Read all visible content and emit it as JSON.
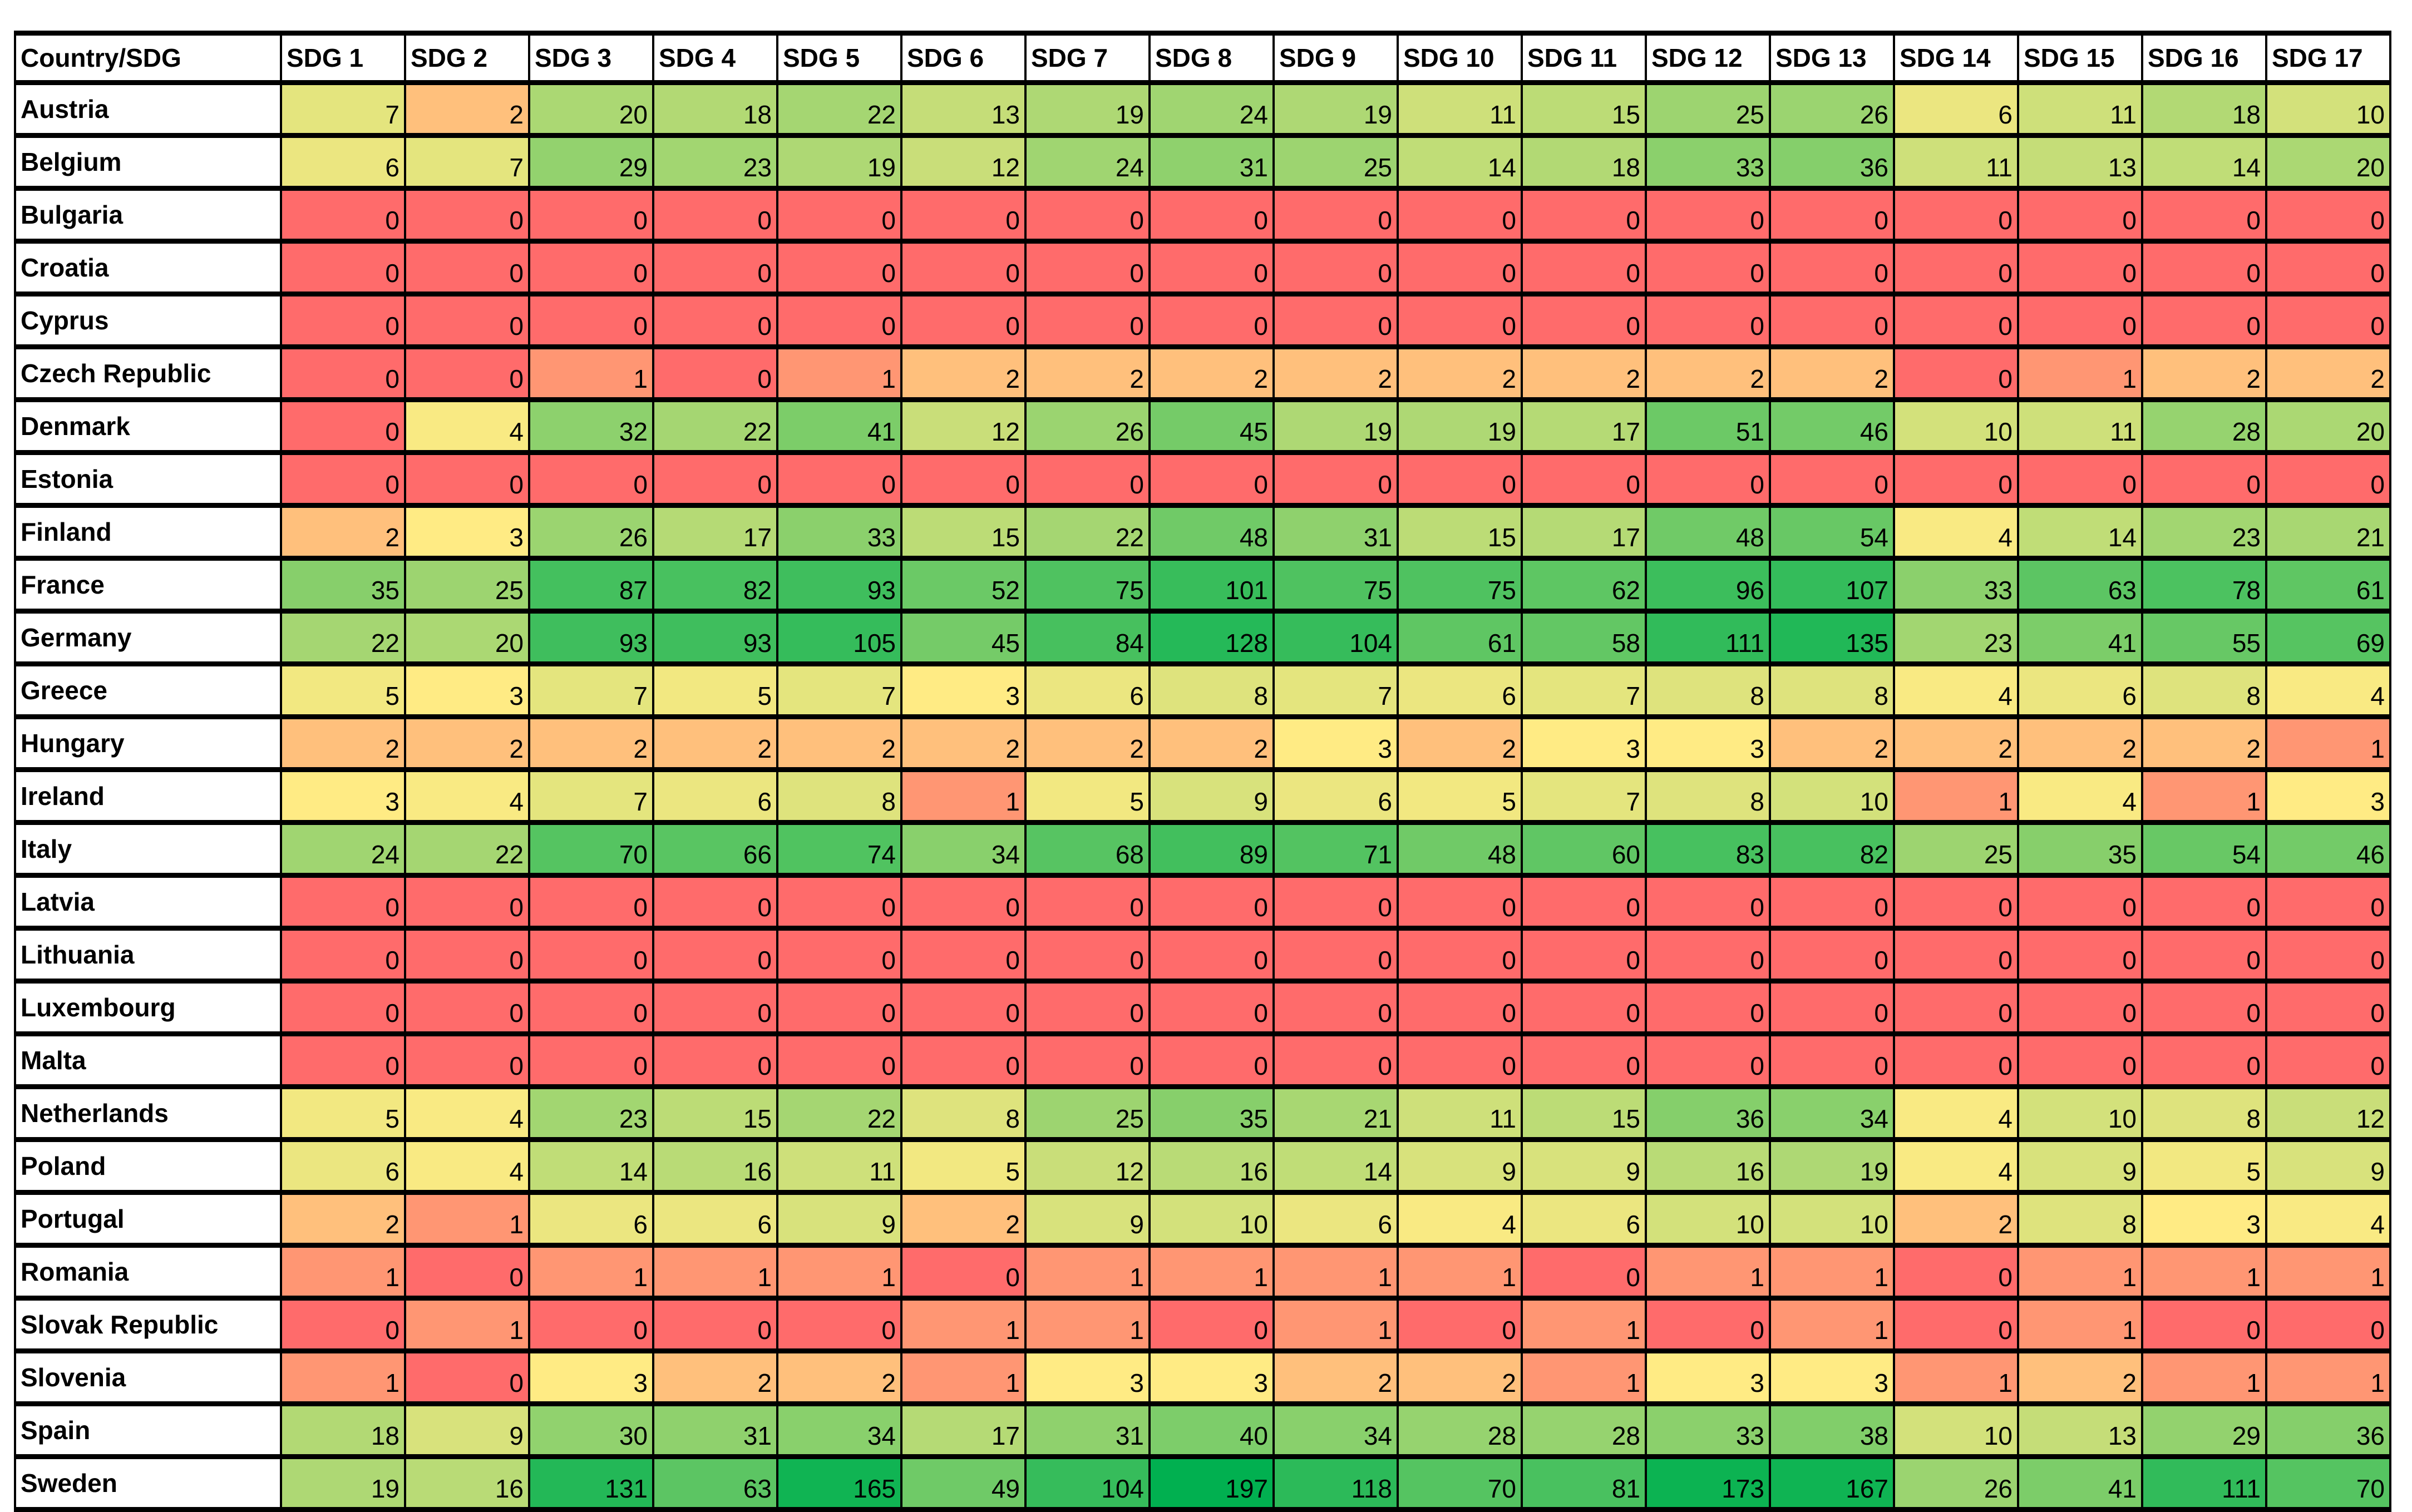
{
  "table": {
    "corner_header": "Country/SDG",
    "columns": [
      "SDG 1",
      "SDG 2",
      "SDG 3",
      "SDG 4",
      "SDG 5",
      "SDG 6",
      "SDG 7",
      "SDG 8",
      "SDG 9",
      "SDG 10",
      "SDG 11",
      "SDG 12",
      "SDG 13",
      "SDG 14",
      "SDG 15",
      "SDG 16",
      "SDG 17"
    ],
    "color_scale": {
      "low": "#FF6B6B",
      "mid": "#FFEB84",
      "high": "#00B050"
    },
    "rows": [
      {
        "country": "Austria",
        "values": [
          7,
          2,
          20,
          18,
          22,
          13,
          19,
          24,
          19,
          11,
          15,
          25,
          26,
          6,
          11,
          18,
          10
        ]
      },
      {
        "country": "Belgium",
        "values": [
          6,
          7,
          29,
          23,
          19,
          12,
          24,
          31,
          25,
          14,
          18,
          33,
          36,
          11,
          13,
          14,
          20
        ]
      },
      {
        "country": "Bulgaria",
        "values": [
          0,
          0,
          0,
          0,
          0,
          0,
          0,
          0,
          0,
          0,
          0,
          0,
          0,
          0,
          0,
          0,
          0
        ]
      },
      {
        "country": "Croatia",
        "values": [
          0,
          0,
          0,
          0,
          0,
          0,
          0,
          0,
          0,
          0,
          0,
          0,
          0,
          0,
          0,
          0,
          0
        ]
      },
      {
        "country": "Cyprus",
        "values": [
          0,
          0,
          0,
          0,
          0,
          0,
          0,
          0,
          0,
          0,
          0,
          0,
          0,
          0,
          0,
          0,
          0
        ]
      },
      {
        "country": "Czech Republic",
        "values": [
          0,
          0,
          1,
          0,
          1,
          2,
          2,
          2,
          2,
          2,
          2,
          2,
          2,
          0,
          1,
          2,
          2
        ]
      },
      {
        "country": "Denmark",
        "values": [
          0,
          4,
          32,
          22,
          41,
          12,
          26,
          45,
          19,
          19,
          17,
          51,
          46,
          10,
          11,
          28,
          20
        ]
      },
      {
        "country": "Estonia",
        "values": [
          0,
          0,
          0,
          0,
          0,
          0,
          0,
          0,
          0,
          0,
          0,
          0,
          0,
          0,
          0,
          0,
          0
        ]
      },
      {
        "country": "Finland",
        "values": [
          2,
          3,
          26,
          17,
          33,
          15,
          22,
          48,
          31,
          15,
          17,
          48,
          54,
          4,
          14,
          23,
          21
        ]
      },
      {
        "country": "France",
        "values": [
          35,
          25,
          87,
          82,
          93,
          52,
          75,
          101,
          75,
          75,
          62,
          96,
          107,
          33,
          63,
          78,
          61
        ]
      },
      {
        "country": "Germany",
        "values": [
          22,
          20,
          93,
          93,
          105,
          45,
          84,
          128,
          104,
          61,
          58,
          111,
          135,
          23,
          41,
          55,
          69
        ]
      },
      {
        "country": "Greece",
        "values": [
          5,
          3,
          7,
          5,
          7,
          3,
          6,
          8,
          7,
          6,
          7,
          8,
          8,
          4,
          6,
          8,
          4
        ]
      },
      {
        "country": "Hungary",
        "values": [
          2,
          2,
          2,
          2,
          2,
          2,
          2,
          2,
          3,
          2,
          3,
          3,
          2,
          2,
          2,
          2,
          1
        ]
      },
      {
        "country": "Ireland",
        "values": [
          3,
          4,
          7,
          6,
          8,
          1,
          5,
          9,
          6,
          5,
          7,
          8,
          10,
          1,
          4,
          1,
          3
        ]
      },
      {
        "country": "Italy",
        "values": [
          24,
          22,
          70,
          66,
          74,
          34,
          68,
          89,
          71,
          48,
          60,
          83,
          82,
          25,
          35,
          54,
          46
        ]
      },
      {
        "country": "Latvia",
        "values": [
          0,
          0,
          0,
          0,
          0,
          0,
          0,
          0,
          0,
          0,
          0,
          0,
          0,
          0,
          0,
          0,
          0
        ]
      },
      {
        "country": "Lithuania",
        "values": [
          0,
          0,
          0,
          0,
          0,
          0,
          0,
          0,
          0,
          0,
          0,
          0,
          0,
          0,
          0,
          0,
          0
        ]
      },
      {
        "country": "Luxembourg",
        "values": [
          0,
          0,
          0,
          0,
          0,
          0,
          0,
          0,
          0,
          0,
          0,
          0,
          0,
          0,
          0,
          0,
          0
        ]
      },
      {
        "country": "Malta",
        "values": [
          0,
          0,
          0,
          0,
          0,
          0,
          0,
          0,
          0,
          0,
          0,
          0,
          0,
          0,
          0,
          0,
          0
        ]
      },
      {
        "country": "Netherlands",
        "values": [
          5,
          4,
          23,
          15,
          22,
          8,
          25,
          35,
          21,
          11,
          15,
          36,
          34,
          4,
          10,
          8,
          12
        ]
      },
      {
        "country": "Poland",
        "values": [
          6,
          4,
          14,
          16,
          11,
          5,
          12,
          16,
          14,
          9,
          9,
          16,
          19,
          4,
          9,
          5,
          9
        ]
      },
      {
        "country": "Portugal",
        "values": [
          2,
          1,
          6,
          6,
          9,
          2,
          9,
          10,
          6,
          4,
          6,
          10,
          10,
          2,
          8,
          3,
          4
        ]
      },
      {
        "country": "Romania",
        "values": [
          1,
          0,
          1,
          1,
          1,
          0,
          1,
          1,
          1,
          1,
          0,
          1,
          1,
          0,
          1,
          1,
          1
        ]
      },
      {
        "country": "Slovak Republic",
        "values": [
          0,
          1,
          0,
          0,
          0,
          1,
          1,
          0,
          1,
          0,
          1,
          0,
          1,
          0,
          1,
          0,
          0
        ]
      },
      {
        "country": "Slovenia",
        "values": [
          1,
          0,
          3,
          2,
          2,
          1,
          3,
          3,
          2,
          2,
          1,
          3,
          3,
          1,
          2,
          1,
          1
        ]
      },
      {
        "country": "Spain",
        "values": [
          18,
          9,
          30,
          31,
          34,
          17,
          31,
          40,
          34,
          28,
          28,
          33,
          38,
          10,
          13,
          29,
          36
        ]
      },
      {
        "country": "Sweden",
        "values": [
          19,
          16,
          131,
          63,
          165,
          49,
          104,
          197,
          118,
          70,
          81,
          173,
          167,
          26,
          41,
          111,
          70
        ]
      }
    ]
  }
}
